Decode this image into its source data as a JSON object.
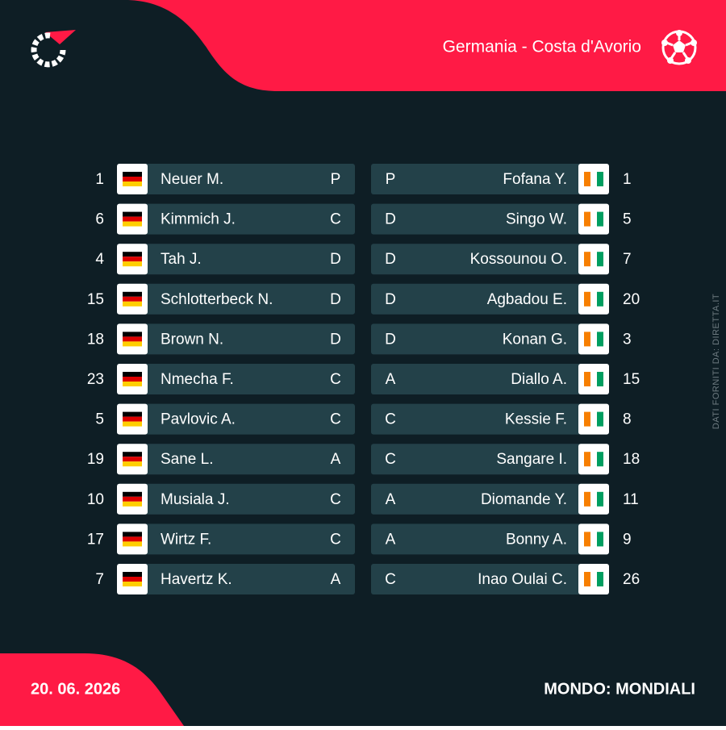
{
  "header": {
    "title": "Germania - Costa d'Avorio"
  },
  "home": {
    "players": [
      {
        "number": 1,
        "name": "Neuer M.",
        "position": "P"
      },
      {
        "number": 6,
        "name": "Kimmich J.",
        "position": "C"
      },
      {
        "number": 4,
        "name": "Tah J.",
        "position": "D"
      },
      {
        "number": 15,
        "name": "Schlotterbeck N.",
        "position": "D"
      },
      {
        "number": 18,
        "name": "Brown N.",
        "position": "D"
      },
      {
        "number": 23,
        "name": "Nmecha F.",
        "position": "C"
      },
      {
        "number": 5,
        "name": "Pavlovic A.",
        "position": "C"
      },
      {
        "number": 19,
        "name": "Sane L.",
        "position": "A"
      },
      {
        "number": 10,
        "name": "Musiala J.",
        "position": "C"
      },
      {
        "number": 17,
        "name": "Wirtz F.",
        "position": "C"
      },
      {
        "number": 7,
        "name": "Havertz K.",
        "position": "A"
      }
    ]
  },
  "away": {
    "players": [
      {
        "number": 1,
        "name": "Fofana Y.",
        "position": "P"
      },
      {
        "number": 5,
        "name": "Singo W.",
        "position": "D"
      },
      {
        "number": 7,
        "name": "Kossounou O.",
        "position": "D"
      },
      {
        "number": 20,
        "name": "Agbadou E.",
        "position": "D"
      },
      {
        "number": 3,
        "name": "Konan G.",
        "position": "D"
      },
      {
        "number": 15,
        "name": "Diallo A.",
        "position": "A"
      },
      {
        "number": 8,
        "name": "Kessie F.",
        "position": "C"
      },
      {
        "number": 18,
        "name": "Sangare I.",
        "position": "C"
      },
      {
        "number": 11,
        "name": "Diomande Y.",
        "position": "A"
      },
      {
        "number": 9,
        "name": "Bonny A.",
        "position": "A"
      },
      {
        "number": 26,
        "name": "Inao Oulai C.",
        "position": "C"
      }
    ]
  },
  "source": "DATI FORNITI DA: DIRETTA.IT",
  "footer": {
    "date": "20. 06. 2026",
    "competition": "MONDO: MONDIALI"
  }
}
